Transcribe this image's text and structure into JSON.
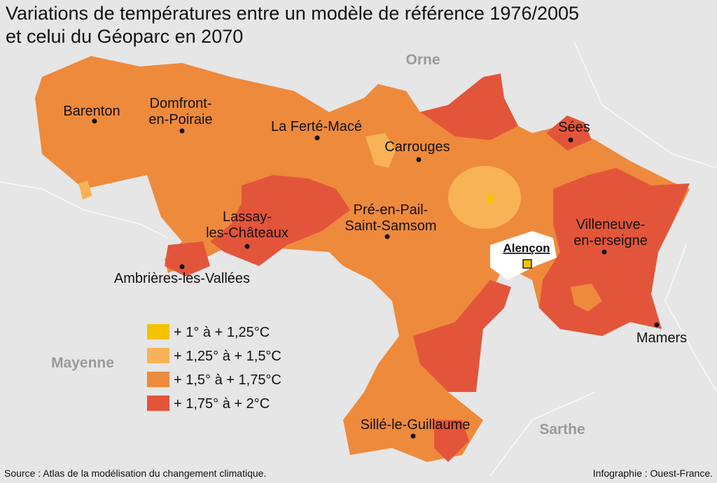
{
  "header": {
    "title": [
      "Variations de températures entre un modèle de référence 1976/2005",
      "et celui du Géoparc en 2070"
    ]
  },
  "departments": [
    "Orne",
    "Mayenne",
    "Sarthe"
  ],
  "towns": [
    {
      "label": [
        "Barenton"
      ]
    },
    {
      "label": [
        "Domfront-",
        "en-Poiraie"
      ]
    },
    {
      "label": [
        "La Ferté-Macé"
      ]
    },
    {
      "label": [
        "Carrouges"
      ]
    },
    {
      "label": [
        "Sées"
      ]
    },
    {
      "label": [
        "Pré-en-Pail-",
        "Saint-Samsom"
      ]
    },
    {
      "label": [
        "Lassay-",
        "les-Châteaux"
      ]
    },
    {
      "label": [
        "Ambrières-les-Vallées"
      ]
    },
    {
      "label": [
        "Villeneuve-",
        "en-erseigne"
      ]
    },
    {
      "label": [
        "Alençon"
      ]
    },
    {
      "label": [
        "Mamers"
      ]
    },
    {
      "label": [
        "Sillé-le-Guillaume"
      ]
    }
  ],
  "legend": [
    {
      "label": "+ 1° à + 1,25°C",
      "color": "#f5c200"
    },
    {
      "label": "+ 1,25° à + 1,5°C",
      "color": "#f7b356"
    },
    {
      "label": "+ 1,5° à + 1,75°C",
      "color": "#ee8a3c"
    },
    {
      "label": "+ 1,75° à + 2°C",
      "color": "#e3553a"
    }
  ],
  "footer": {
    "source": "Source : Atlas de la modélisation du changement climatique.",
    "credit": "Infographie : Ouest-France."
  }
}
